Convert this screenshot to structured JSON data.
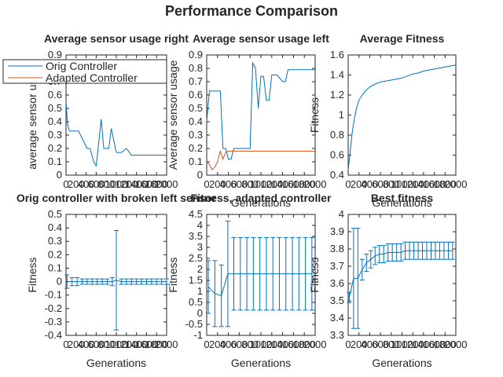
{
  "figure": {
    "title": "Performance Comparison",
    "legend": {
      "placement": "over first panel, top-left",
      "entries": [
        {
          "label": "Orig Controller",
          "color": "#0072bd"
        },
        {
          "label": "Adapted Controller",
          "color": "#d95319"
        }
      ]
    }
  },
  "chart_data": [
    {
      "type": "line",
      "title": "Average sensor usage right",
      "xlabel": "",
      "ylabel": "average sensor usage",
      "xlim": [
        0,
        2000
      ],
      "ylim": [
        0,
        0.9
      ],
      "xticks": [
        0,
        200,
        400,
        600,
        800,
        1000,
        1200,
        1400,
        1600,
        1800,
        2000
      ],
      "yticks": [
        0,
        0.1,
        0.2,
        0.3,
        0.4,
        0.5,
        0.6,
        0.7,
        0.8,
        0.9
      ],
      "series": [
        {
          "name": "Orig Controller",
          "color": "#0072bd",
          "x": [
            0,
            30,
            70,
            100,
            150,
            250,
            420,
            480,
            550,
            600,
            700,
            750,
            850,
            900,
            1000,
            1100,
            1200,
            1300,
            1600,
            2000
          ],
          "y": [
            0.55,
            0.38,
            0.33,
            0.33,
            0.33,
            0.33,
            0.2,
            0.2,
            0.1,
            0.07,
            0.42,
            0.2,
            0.2,
            0.35,
            0.17,
            0.17,
            0.2,
            0.15,
            0.15,
            0.15
          ]
        }
      ]
    },
    {
      "type": "line",
      "title": "Average sensor usage left",
      "xlabel": "Generations",
      "ylabel": "Average sensor usage",
      "xlim": [
        0,
        2000
      ],
      "ylim": [
        0,
        0.9
      ],
      "xticks": [
        0,
        200,
        400,
        600,
        800,
        1000,
        1200,
        1400,
        1600,
        1800,
        2000
      ],
      "yticks": [
        0,
        0.1,
        0.2,
        0.3,
        0.4,
        0.5,
        0.6,
        0.7,
        0.8,
        0.9
      ],
      "series": [
        {
          "name": "Orig Controller",
          "color": "#0072bd",
          "x": [
            0,
            50,
            100,
            250,
            300,
            350,
            400,
            450,
            500,
            600,
            800,
            850,
            900,
            950,
            1000,
            1050,
            1100,
            1150,
            1200,
            1300,
            1400,
            1450,
            1500,
            1600,
            2000
          ],
          "y": [
            0.4,
            0.63,
            0.63,
            0.63,
            0.2,
            0.2,
            0.12,
            0.12,
            0.2,
            0.2,
            0.2,
            0.84,
            0.8,
            0.5,
            0.74,
            0.74,
            0.56,
            0.56,
            0.75,
            0.75,
            0.7,
            0.7,
            0.79,
            0.79,
            0.79
          ]
        },
        {
          "name": "Adapted Controller",
          "color": "#d95319",
          "x": [
            0,
            50,
            100,
            150,
            200,
            250,
            300,
            350,
            400,
            500,
            2000
          ],
          "y": [
            0.1,
            0.08,
            0.04,
            0.06,
            0.1,
            0.18,
            0.12,
            0.17,
            0.18,
            0.18,
            0.18
          ]
        }
      ]
    },
    {
      "type": "line",
      "title": "Average Fitness",
      "xlabel": "Generations",
      "ylabel": "Fitness",
      "xlim": [
        0,
        2000
      ],
      "ylim": [
        0.4,
        1.6
      ],
      "xticks": [
        0,
        200,
        400,
        600,
        800,
        1000,
        1200,
        1400,
        1600,
        1800,
        2000
      ],
      "yticks": [
        0.4,
        0.6,
        0.8,
        1.0,
        1.2,
        1.4,
        1.6
      ],
      "series": [
        {
          "name": "",
          "color": "#0072bd",
          "x": [
            0,
            40,
            80,
            120,
            160,
            200,
            260,
            320,
            400,
            500,
            600,
            700,
            800,
            900,
            1000,
            1100,
            1200,
            1300,
            1400,
            1500,
            1600,
            1700,
            1800,
            1900,
            2000
          ],
          "y": [
            0.45,
            0.65,
            0.85,
            0.98,
            1.08,
            1.15,
            1.2,
            1.24,
            1.28,
            1.31,
            1.33,
            1.34,
            1.35,
            1.36,
            1.37,
            1.39,
            1.41,
            1.42,
            1.44,
            1.45,
            1.46,
            1.47,
            1.48,
            1.49,
            1.5
          ]
        }
      ]
    },
    {
      "type": "errorbar",
      "title": "Orig controller with broken left sensor",
      "xlabel": "Generations",
      "ylabel": "Fitness",
      "xlim": [
        0,
        2000
      ],
      "ylim": [
        -0.4,
        0.5
      ],
      "xticks": [
        0,
        200,
        400,
        600,
        800,
        1000,
        1200,
        1400,
        1600,
        1800,
        2000
      ],
      "yticks": [
        -0.4,
        -0.3,
        -0.2,
        -0.1,
        0,
        0.1,
        0.2,
        0.3,
        0.4,
        0.5
      ],
      "series": [
        {
          "name": "",
          "color": "#0072bd",
          "x": [
            20,
            120,
            220,
            320,
            420,
            520,
            620,
            720,
            820,
            920,
            1000,
            1100,
            1200,
            1300,
            1400,
            1500,
            1600,
            1700,
            1800,
            1900,
            2000
          ],
          "y": [
            0,
            0,
            0,
            0,
            0,
            0,
            0,
            0,
            0,
            0,
            0.01,
            0,
            0,
            0,
            0,
            0,
            0,
            0,
            0,
            0,
            0
          ],
          "err": [
            0.05,
            0.03,
            0.03,
            0.02,
            0.02,
            0.02,
            0.02,
            0.02,
            0.02,
            0.03,
            0.37,
            0.02,
            0.02,
            0.02,
            0.02,
            0.02,
            0.02,
            0.02,
            0.02,
            0.02,
            0.02
          ]
        }
      ]
    },
    {
      "type": "errorbar",
      "title": "Fitness, adapted controller",
      "xlabel": "Generations",
      "ylabel": "Fitness",
      "xlim": [
        0,
        2000
      ],
      "ylim": [
        -1,
        4.5
      ],
      "xticks": [
        0,
        200,
        400,
        600,
        800,
        1000,
        1200,
        1400,
        1600,
        1800,
        2000
      ],
      "yticks": [
        -1,
        -0.5,
        0,
        0.5,
        1,
        1.5,
        2,
        2.5,
        3,
        3.5,
        4,
        4.5
      ],
      "series": [
        {
          "name": "",
          "color": "#0072bd",
          "x": [
            30,
            150,
            270,
            390,
            500,
            620,
            740,
            860,
            980,
            1100,
            1220,
            1340,
            1460,
            1580,
            1700,
            1820,
            1940
          ],
          "y": [
            1.2,
            0.9,
            0.8,
            1.8,
            1.8,
            1.8,
            1.8,
            1.8,
            1.8,
            1.8,
            1.8,
            1.8,
            1.8,
            1.8,
            1.8,
            1.8,
            1.8
          ],
          "err": [
            1.2,
            1.5,
            1.4,
            2.4,
            1.65,
            1.65,
            1.65,
            1.65,
            1.65,
            1.65,
            1.65,
            1.65,
            1.65,
            1.65,
            1.65,
            1.65,
            1.65
          ]
        }
      ]
    },
    {
      "type": "errorbar",
      "title": "Best fitness",
      "xlabel": "Generations",
      "ylabel": "Fitness",
      "xlim": [
        0,
        2000
      ],
      "ylim": [
        3.3,
        4.0
      ],
      "xticks": [
        0,
        200,
        400,
        600,
        800,
        1000,
        1200,
        1400,
        1600,
        1800,
        2000
      ],
      "yticks": [
        3.3,
        3.4,
        3.5,
        3.6,
        3.7,
        3.8,
        3.9,
        4.0
      ],
      "series": [
        {
          "name": "",
          "color": "#0072bd",
          "x": [
            20,
            100,
            180,
            260,
            340,
            420,
            500,
            580,
            660,
            740,
            820,
            900,
            980,
            1060,
            1140,
            1220,
            1300,
            1380,
            1460,
            1540,
            1620,
            1700,
            1780,
            1860,
            1940
          ],
          "y": [
            3.52,
            3.63,
            3.63,
            3.68,
            3.72,
            3.74,
            3.76,
            3.77,
            3.77,
            3.78,
            3.78,
            3.78,
            3.78,
            3.79,
            3.79,
            3.79,
            3.79,
            3.79,
            3.79,
            3.79,
            3.79,
            3.79,
            3.79,
            3.79,
            3.79
          ],
          "err": [
            0.03,
            0.29,
            0.29,
            0.06,
            0.05,
            0.05,
            0.05,
            0.05,
            0.05,
            0.05,
            0.05,
            0.05,
            0.05,
            0.05,
            0.05,
            0.05,
            0.05,
            0.05,
            0.05,
            0.05,
            0.05,
            0.05,
            0.05,
            0.05,
            0.05
          ]
        }
      ]
    }
  ]
}
